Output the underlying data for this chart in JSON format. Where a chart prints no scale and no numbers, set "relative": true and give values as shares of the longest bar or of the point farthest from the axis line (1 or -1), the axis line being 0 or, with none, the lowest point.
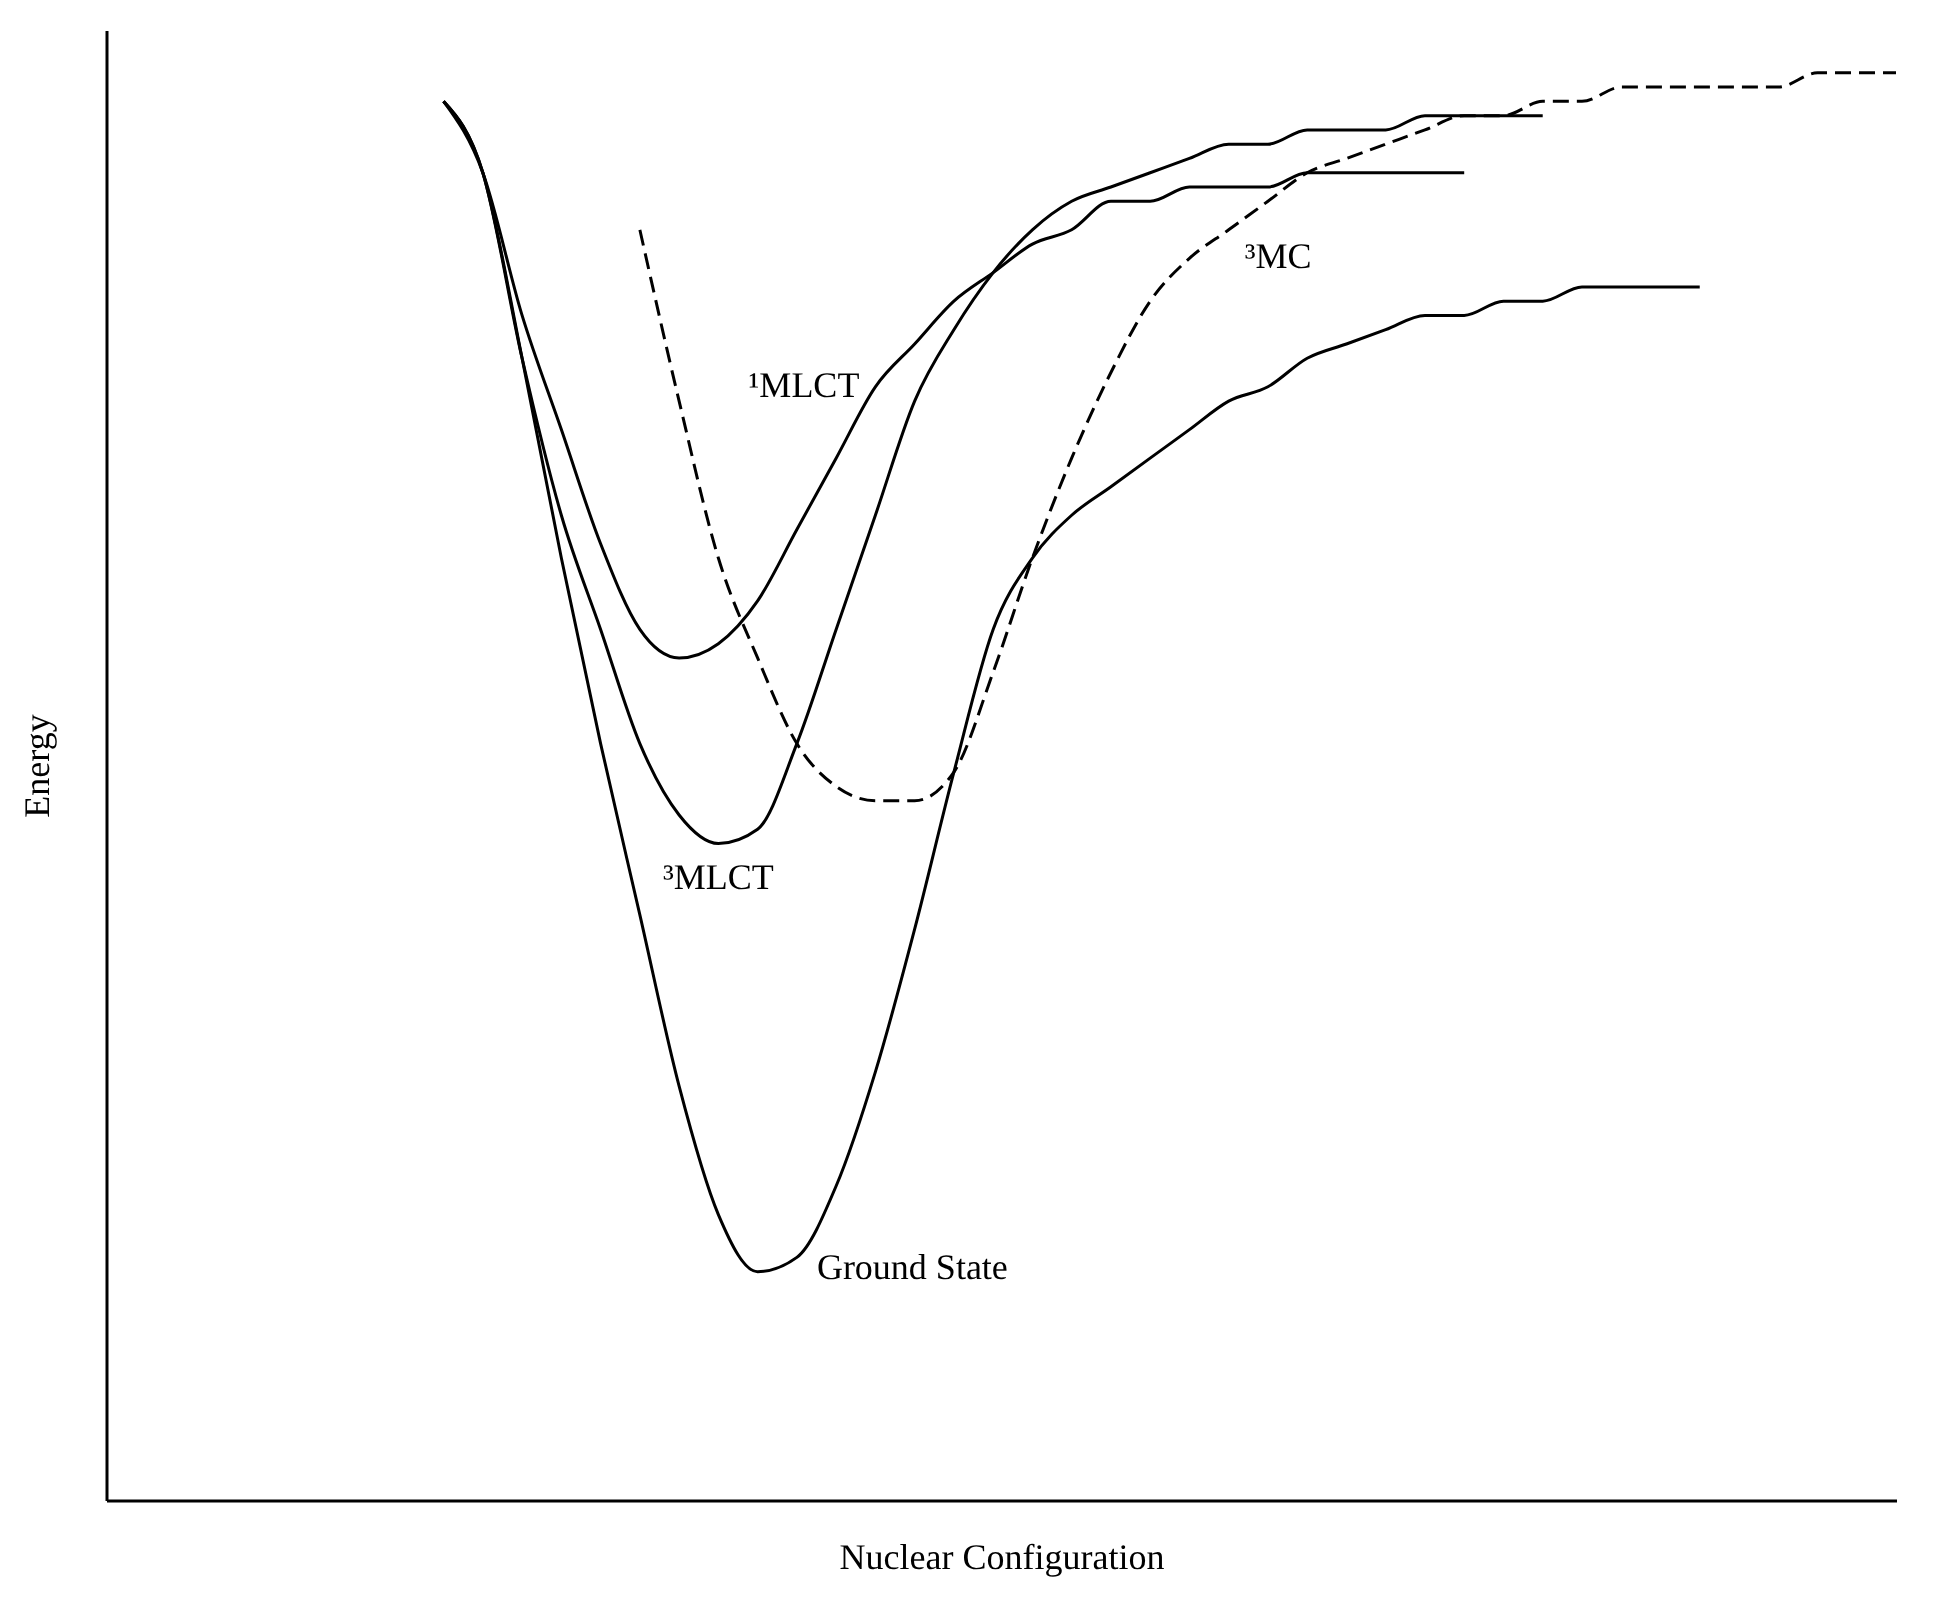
{
  "chart_data": {
    "type": "line",
    "relative": true,
    "xlabel": "Nuclear Configuration",
    "ylabel": "Energy",
    "grid": false,
    "marker": "none",
    "categories": [
      null,
      null,
      null,
      null,
      null,
      null,
      null,
      null,
      null,
      null,
      null,
      null,
      null,
      null,
      null,
      null,
      null,
      null,
      null,
      null,
      null,
      null,
      null,
      null,
      null,
      null,
      null,
      null,
      null,
      null,
      null,
      null,
      null,
      null,
      null,
      null,
      null,
      null,
      null,
      null,
      null,
      null,
      null,
      null,
      null,
      null
    ],
    "series": [
      {
        "name": "¹MLCT",
        "color": "#000000",
        "line_style": "solid",
        "values": [
          null,
          null,
          null,
          null,
          null,
          null,
          null,
          null,
          0.98,
          0.93,
          0.83,
          0.75,
          0.67,
          0.61,
          0.59,
          0.6,
          0.63,
          0.68,
          0.73,
          0.78,
          0.81,
          0.84,
          0.86,
          0.88,
          0.89,
          0.91,
          0.91,
          0.92,
          0.92,
          0.92,
          0.93,
          0.93,
          0.93,
          0.93,
          0.93,
          null,
          null,
          null,
          null,
          null,
          null,
          null,
          null,
          null,
          null,
          null
        ]
      },
      {
        "name": "³MLCT",
        "color": "#000000",
        "line_style": "solid",
        "values": [
          null,
          null,
          null,
          null,
          null,
          null,
          null,
          null,
          0.98,
          0.93,
          0.8,
          0.69,
          0.61,
          0.53,
          0.48,
          0.46,
          0.47,
          0.53,
          0.61,
          0.69,
          0.77,
          0.82,
          0.86,
          0.89,
          0.91,
          0.92,
          0.93,
          0.94,
          0.95,
          0.95,
          0.96,
          0.96,
          0.96,
          0.97,
          0.97,
          0.97,
          0.97,
          null,
          null,
          null,
          null,
          null,
          null,
          null,
          null,
          null
        ]
      },
      {
        "name": "Ground State",
        "color": "#000000",
        "line_style": "solid",
        "values": [
          null,
          null,
          null,
          null,
          null,
          null,
          null,
          null,
          0.98,
          0.93,
          0.8,
          0.66,
          0.53,
          0.41,
          0.29,
          0.2,
          0.16,
          0.17,
          0.22,
          0.3,
          0.4,
          0.51,
          0.61,
          0.66,
          0.69,
          0.71,
          0.73,
          0.75,
          0.77,
          0.78,
          0.8,
          0.81,
          0.82,
          0.83,
          0.83,
          0.84,
          0.84,
          0.85,
          0.85,
          0.85,
          0.85,
          null,
          null,
          null,
          null,
          null
        ]
      },
      {
        "name": "³MC",
        "color": "#000000",
        "line_style": "dashed",
        "values": [
          null,
          null,
          null,
          null,
          null,
          null,
          null,
          null,
          null,
          null,
          null,
          null,
          null,
          0.89,
          0.77,
          0.66,
          0.59,
          0.53,
          0.5,
          0.49,
          0.49,
          0.51,
          0.58,
          0.66,
          0.73,
          0.79,
          0.84,
          0.87,
          0.89,
          0.91,
          0.93,
          0.94,
          0.95,
          0.96,
          0.97,
          0.97,
          0.98,
          0.98,
          0.99,
          0.99,
          0.99,
          0.99,
          0.99,
          1.0,
          1.0,
          1
        ]
      }
    ]
  }
}
